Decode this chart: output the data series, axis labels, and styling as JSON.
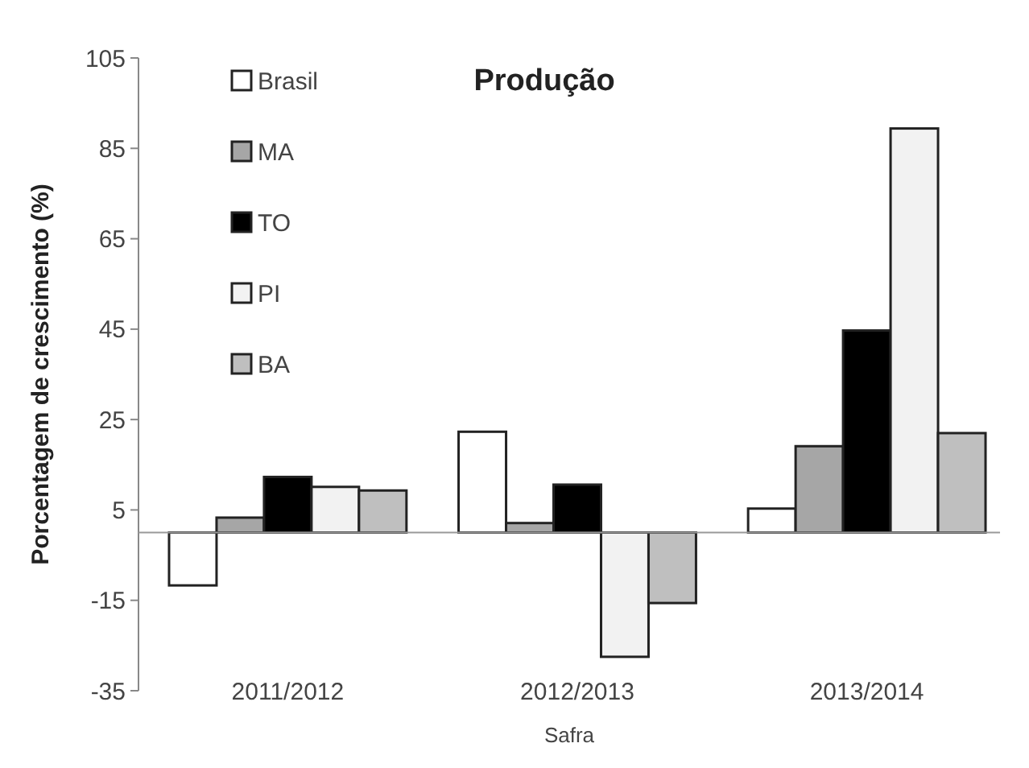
{
  "chart_data": {
    "type": "bar",
    "title": "Produção",
    "xlabel": "Safra",
    "ylabel": "Porcentagem de crescimento (%)",
    "categories": [
      "2011/2012",
      "2012/2013",
      "2013/2014"
    ],
    "series": [
      {
        "name": "Brasil",
        "color": "#ffffff",
        "values": [
          -11.7,
          22.3,
          5.3
        ]
      },
      {
        "name": "MA",
        "color": "#a6a6a6",
        "values": [
          3.3,
          2.1,
          19.1
        ]
      },
      {
        "name": "TO",
        "color": "#000000",
        "values": [
          12.3,
          10.6,
          44.7
        ]
      },
      {
        "name": "PI",
        "color": "#f2f2f2",
        "values": [
          10.1,
          -27.5,
          89.4
        ]
      },
      {
        "name": "BA",
        "color": "#bfbfbf",
        "values": [
          9.3,
          -15.6,
          22
        ]
      }
    ],
    "ylim": [
      -35,
      105
    ],
    "yticks": [
      -35,
      -15,
      5,
      25,
      45,
      65,
      85,
      105
    ],
    "grid": false,
    "legend": "top left"
  }
}
